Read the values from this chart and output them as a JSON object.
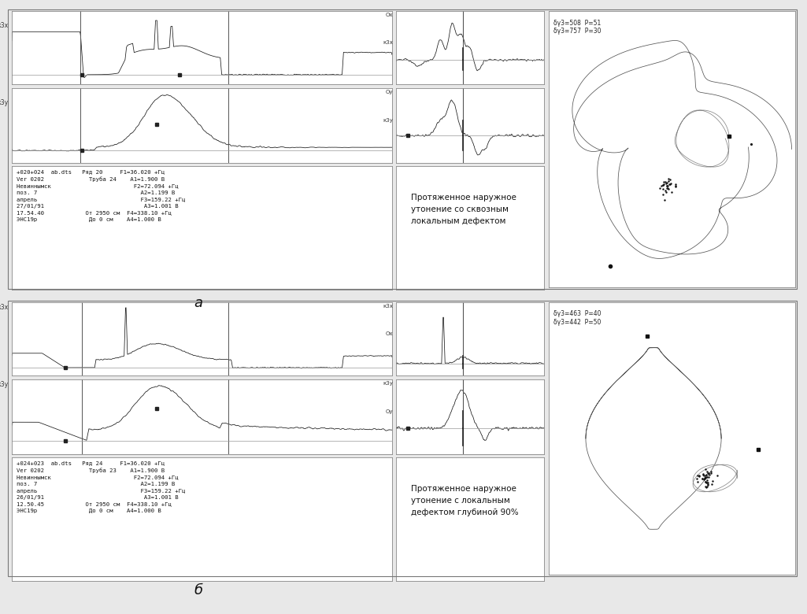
{
  "bg_color": "#e8e8e8",
  "panel_bg": "#ffffff",
  "title_a": "а",
  "title_b": "б",
  "text_info_a": "+020+024  ab.dts   Ряд 20     F1=36.020 +Гц\nVer 0202             Труба 24    A1=1.900 B\nНевиннымск                        F2=72.094 +Гц\nпоз. 7                              A2=1.199 B\nапрель                              F3=159.22 +Гц\n27/01/91                             A3=1.001 B\n17.54.40            От 2950 см  F4=338.10 +Гц\nЭHC19р               До 0 см    A4=1.000 B",
  "text_info_b": "+024+023  ab.dts   Ряд 24     F1=36.020 +Гц\nVer 0202             Труба 23    A1=1.900 B\nНевиннымск                        F2=72.094 +Гц\nпоз. 7                              A2=1.199 B\nапрель                              F3=159.22 +Гц\n26/01/91                             A3=1.001 B\n12.50.45            От 2950 см  F4=338.10 +Гц\nЭHC19р               До 0 см    A4=1.000 B",
  "label_a": "Протяженное наружное\nутонение со сквозным\nлокальным дефектом",
  "label_b": "Протяженное наружное\nутонение с локальным\nдефектом глубиной 90%",
  "liss_label_a": "δγ3=508  P=51\nδγ3=757  P=30",
  "liss_label_b": "δγ3=463  P=40\nδγ3=442  P=50",
  "lc": "#1a1a1a",
  "spine_color": "#888888"
}
